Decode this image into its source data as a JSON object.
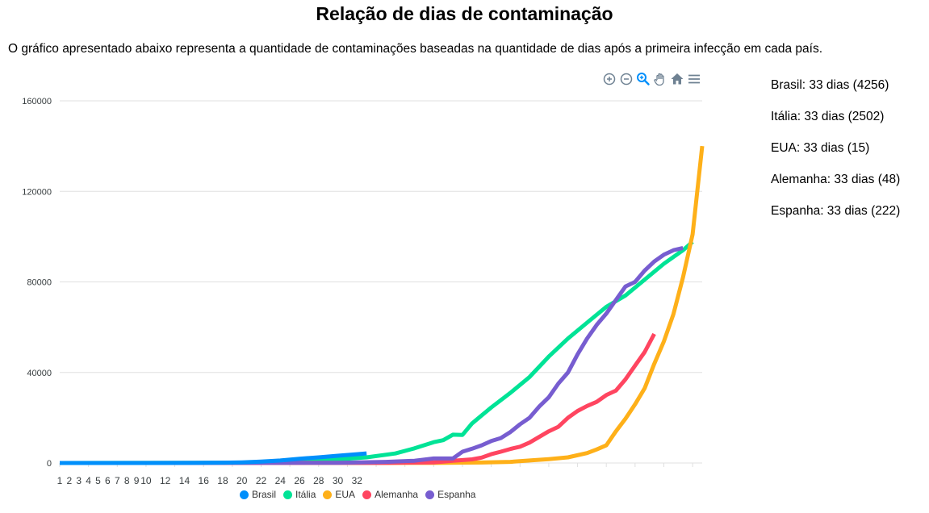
{
  "header": {
    "title": "Relação de dias de contaminação",
    "description": "O gráfico apresentado abaixo representa a quantidade de contaminações baseadas na quantidade de dias após a primeira infecção em cada país."
  },
  "stats": [
    {
      "label": "Brasil: 33 dias (4256)"
    },
    {
      "label": "Itália: 33 dias (2502)"
    },
    {
      "label": "EUA: 33 dias (15)"
    },
    {
      "label": "Alemanha: 33 dias (48)"
    },
    {
      "label": "Espanha: 33 dias (222)"
    }
  ],
  "toolbar": {
    "icons": [
      "zoom-in-icon",
      "zoom-out-icon",
      "selection-zoom-icon",
      "pan-hand-icon",
      "home-reset-icon",
      "menu-icon"
    ]
  },
  "colors": {
    "Brasil": "#008FFB",
    "Itália": "#00E396",
    "EUA": "#FEB019",
    "Alemanha": "#FF4560",
    "Espanha": "#775DD0",
    "toolbar_active": "#008FFB",
    "toolbar_icon": "#6E8192"
  },
  "chart_data": {
    "type": "line",
    "title": "",
    "xlabel": "",
    "ylabel": "",
    "ylim": [
      0,
      160000
    ],
    "yticks": [
      0,
      40000,
      80000,
      120000,
      160000
    ],
    "xlim": [
      1,
      68
    ],
    "xticks": [
      1,
      2,
      3,
      4,
      5,
      6,
      7,
      8,
      9,
      10,
      12,
      14,
      16,
      18,
      20,
      22,
      24,
      26,
      28,
      30,
      32
    ],
    "grid": true,
    "legend_position": "bottom",
    "series": [
      {
        "name": "Brasil",
        "x": [
          1,
          5,
          10,
          15,
          18,
          20,
          22,
          24,
          26,
          28,
          30,
          32,
          33
        ],
        "y": [
          1,
          2,
          5,
          40,
          150,
          300,
          600,
          1100,
          1900,
          2500,
          3200,
          3900,
          4256
        ]
      },
      {
        "name": "Itália",
        "x": [
          1,
          20,
          25,
          30,
          33,
          36,
          38,
          40,
          41,
          42,
          43,
          44,
          45,
          46,
          48,
          50,
          52,
          54,
          56,
          58,
          60,
          62,
          64,
          66,
          67
        ],
        "y": [
          0,
          100,
          600,
          1600,
          2500,
          4200,
          6500,
          9200,
          10100,
          12500,
          12400,
          17500,
          21000,
          24500,
          31000,
          38000,
          47000,
          55000,
          62000,
          69000,
          74000,
          81000,
          88000,
          94000,
          97700
        ]
      },
      {
        "name": "EUA",
        "x": [
          1,
          40,
          45,
          48,
          50,
          52,
          54,
          56,
          57,
          58,
          59,
          60,
          61,
          62,
          63,
          64,
          65,
          66,
          67,
          68
        ],
        "y": [
          0,
          20,
          200,
          500,
          1100,
          1700,
          2500,
          4400,
          6000,
          7800,
          14000,
          19600,
          25900,
          33000,
          43800,
          53700,
          65800,
          82000,
          101000,
          140000
        ]
      },
      {
        "name": "Alemanha",
        "x": [
          1,
          35,
          40,
          42,
          44,
          45,
          46,
          47,
          48,
          49,
          50,
          51,
          52,
          53,
          54,
          55,
          56,
          57,
          58,
          59,
          60,
          61,
          62,
          63
        ],
        "y": [
          0,
          50,
          300,
          1000,
          1600,
          2400,
          3900,
          5000,
          6200,
          7200,
          9000,
          11500,
          14000,
          16000,
          20000,
          23000,
          25200,
          27000,
          30000,
          32000,
          37000,
          43000,
          49000,
          57000
        ]
      },
      {
        "name": "Espanha",
        "x": [
          1,
          30,
          35,
          38,
          40,
          42,
          43,
          44,
          45,
          46,
          47,
          48,
          49,
          50,
          51,
          52,
          53,
          54,
          55,
          56,
          57,
          58,
          59,
          60,
          61,
          62,
          63,
          64,
          65,
          66
        ],
        "y": [
          0,
          100,
          500,
          1000,
          2000,
          2000,
          5000,
          6300,
          7800,
          9700,
          11000,
          13700,
          17100,
          20000,
          24900,
          29000,
          35100,
          40000,
          48000,
          55000,
          61000,
          66000,
          72000,
          78000,
          80000,
          85000,
          89000,
          92000,
          94000,
          95000
        ]
      }
    ]
  }
}
